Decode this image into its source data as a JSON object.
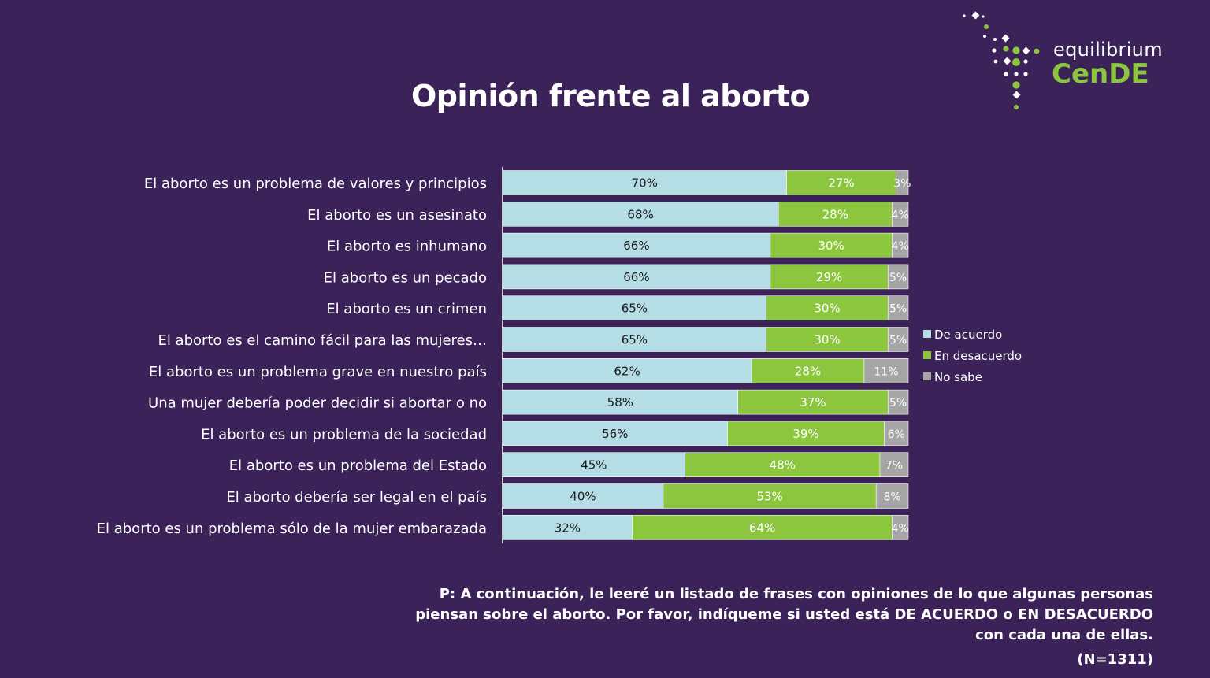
{
  "title": "Opinión frente al aborto",
  "logo": {
    "top_text": "equilibrium",
    "bottom_text": "CenDE"
  },
  "colors": {
    "background": "#3b2258",
    "de_acuerdo": "#b5dde6",
    "en_desacuerdo": "#8cc63f",
    "no_sabe": "#a5a5a5"
  },
  "chart_data": {
    "type": "bar",
    "orientation": "horizontal",
    "stacked": true,
    "unit": "%",
    "categories": [
      "El aborto es un problema de valores y principios",
      "El aborto es un asesinato",
      "El aborto es inhumano",
      "El aborto es un pecado",
      "El aborto es un crimen",
      "El aborto es el camino fácil para las mujeres…",
      "El aborto es un problema grave en nuestro país",
      "Una mujer debería poder decidir si abortar o no",
      "El aborto es un problema de la sociedad",
      "El aborto es un problema del Estado",
      "El aborto debería ser legal en el país",
      "El aborto es un problema sólo de la mujer embarazada"
    ],
    "series": [
      {
        "name": "De acuerdo",
        "values": [
          70,
          68,
          66,
          66,
          65,
          65,
          62,
          58,
          56,
          45,
          40,
          32
        ]
      },
      {
        "name": "En desacuerdo",
        "values": [
          27,
          28,
          30,
          29,
          30,
          30,
          28,
          37,
          39,
          48,
          53,
          64
        ]
      },
      {
        "name": "No sabe",
        "values": [
          3,
          4,
          4,
          5,
          5,
          5,
          11,
          5,
          6,
          7,
          8,
          4
        ]
      }
    ],
    "xlim": [
      0,
      100
    ],
    "legend_position": "right"
  },
  "footnote": {
    "question": "P: A continuación, le leeré un listado de frases con opiniones de lo que algunas personas piensan sobre el aborto. Por favor, indíqueme si usted está DE ACUERDO o EN DESACUERDO con cada una de ellas.",
    "n": "(N=1311)"
  }
}
